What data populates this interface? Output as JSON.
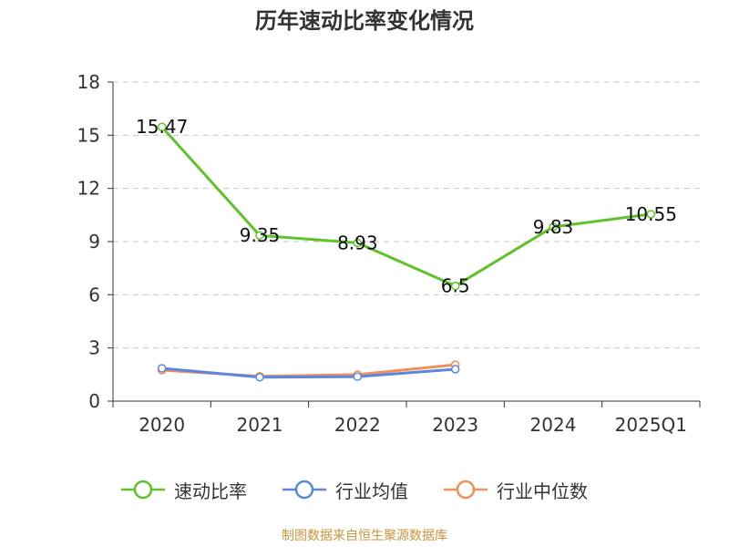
{
  "title": "历年速动比率变化情况",
  "source_note": "制图数据来自恒生聚源数据库",
  "colors": {
    "series_main": "#5fc228",
    "series_avg": "#5b87e0",
    "series_median": "#f0905a",
    "grid": "#c8c8c8",
    "axis": "#333333"
  },
  "chart_data": {
    "type": "line",
    "title": "历年速动比率变化情况",
    "xlabel": "",
    "ylabel": "",
    "categories": [
      "2020",
      "2021",
      "2022",
      "2023",
      "2024",
      "2025Q1"
    ],
    "ylim": [
      0,
      18
    ],
    "yticks": [
      0,
      3,
      6,
      9,
      12,
      15,
      18
    ],
    "grid": true,
    "legend_position": "bottom",
    "series": [
      {
        "name": "速动比率",
        "values": [
          15.47,
          9.35,
          8.93,
          6.5,
          9.83,
          10.55
        ],
        "show_labels": true
      },
      {
        "name": "行业均值",
        "values": [
          1.85,
          1.35,
          1.38,
          1.8,
          null,
          null
        ],
        "show_labels": false
      },
      {
        "name": "行业中位数",
        "values": [
          1.75,
          1.4,
          1.5,
          2.05,
          null,
          null
        ],
        "show_labels": false
      }
    ]
  }
}
